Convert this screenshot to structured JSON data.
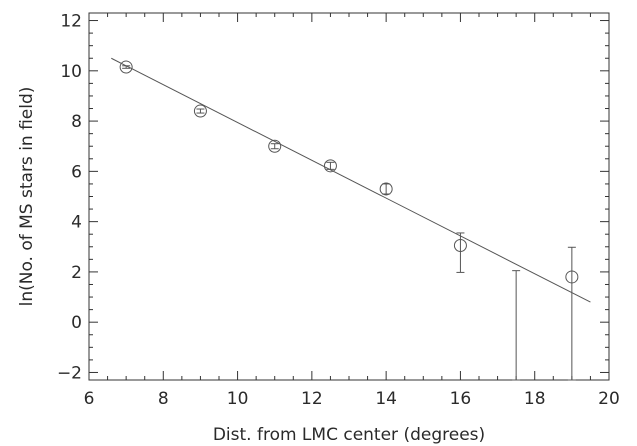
{
  "chart_data": {
    "type": "scatter",
    "title": "",
    "xlabel": "Dist. from LMC center (degrees)",
    "ylabel": "ln(No. of MS stars in field)",
    "xlim": [
      6,
      20
    ],
    "ylim": [
      -2.3,
      12.3
    ],
    "grid": false,
    "legend": "none",
    "x_ticks": [
      6,
      8,
      10,
      12,
      14,
      16,
      18,
      20
    ],
    "x_tick_labels": [
      "6",
      "8",
      "10",
      "12",
      "14",
      "16",
      "18",
      "20"
    ],
    "y_ticks": [
      -2,
      0,
      2,
      4,
      6,
      8,
      10,
      12
    ],
    "y_tick_labels": [
      "−2",
      "0",
      "2",
      "4",
      "6",
      "8",
      "10",
      "12"
    ],
    "series": [
      {
        "marker": "open-circle",
        "points": [
          {
            "x": 7.0,
            "y": 10.15,
            "err_low": 10.1,
            "err_high": 10.2
          },
          {
            "x": 9.0,
            "y": 8.4,
            "err_low": 8.32,
            "err_high": 8.48
          },
          {
            "x": 11.0,
            "y": 7.0,
            "err_low": 6.9,
            "err_high": 7.1
          },
          {
            "x": 12.5,
            "y": 6.22,
            "err_low": 6.08,
            "err_high": 6.36
          },
          {
            "x": 14.0,
            "y": 5.3,
            "err_low": 5.1,
            "err_high": 5.5
          },
          {
            "x": 16.0,
            "y": 3.05,
            "err_low": 1.98,
            "err_high": 3.55
          },
          {
            "x": 19.0,
            "y": 1.8,
            "err_low": -2.3,
            "err_high": 2.98
          }
        ],
        "errorbars_without_marker": [
          {
            "x": 17.5,
            "err_low": -2.3,
            "err_high": 2.05
          }
        ]
      }
    ],
    "fit_line": {
      "x": [
        6.6,
        19.5
      ],
      "y": [
        10.5,
        0.8
      ]
    },
    "colors": {
      "line": "#555555",
      "marker": "#555555",
      "axes": "#333333",
      "text": "#2a2a2a"
    }
  }
}
